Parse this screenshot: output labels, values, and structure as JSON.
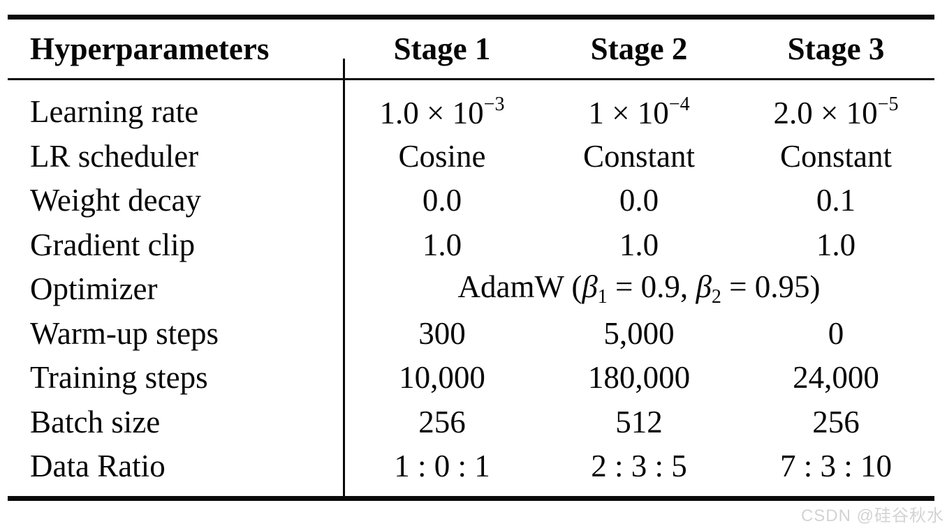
{
  "page": {
    "background": "#ffffff",
    "text_color": "#060606",
    "rule_color": "#0a0a0a"
  },
  "table": {
    "headers": [
      "Hyperparameters",
      "Stage 1",
      "Stage 2",
      "Stage 3"
    ],
    "rows": [
      {
        "label": "Learning rate",
        "values": [
          {
            "base": "1.0 × 10",
            "exp": "−3"
          },
          {
            "base": "1 × 10",
            "exp": "−4"
          },
          {
            "base": "2.0 × 10",
            "exp": "−5"
          }
        ]
      },
      {
        "label": "LR scheduler",
        "values": [
          "Cosine",
          "Constant",
          "Constant"
        ]
      },
      {
        "label": "Weight decay",
        "values": [
          "0.0",
          "0.0",
          "0.1"
        ]
      },
      {
        "label": "Gradient clip",
        "values": [
          "1.0",
          "1.0",
          "1.0"
        ]
      },
      {
        "label": "Optimizer",
        "span_value": {
          "pre": "AdamW (",
          "beta1": "β",
          "sub1": "1",
          "mid": " = 0.9, ",
          "beta2": "β",
          "sub2": "2",
          "end": " = 0.95)"
        }
      },
      {
        "label": "Warm-up steps",
        "values": [
          "300",
          "5,000",
          "0"
        ]
      },
      {
        "label": "Training steps",
        "values": [
          "10,000",
          "180,000",
          "24,000"
        ]
      },
      {
        "label": "Batch size",
        "values": [
          "256",
          "512",
          "256"
        ]
      },
      {
        "label": "Data Ratio",
        "values": [
          "1 : 0 : 1",
          "2 : 3 : 5",
          "7 : 3 : 10"
        ]
      }
    ]
  },
  "watermark": {
    "text": "CSDN @硅谷秋水",
    "color": "#d3d3d3"
  }
}
